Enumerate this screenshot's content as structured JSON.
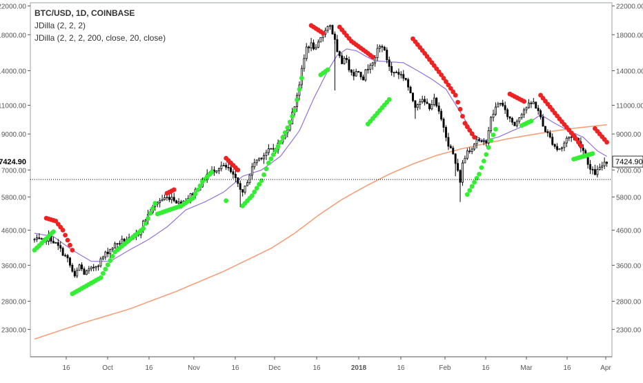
{
  "legend": {
    "symbol": "BTC/USD, 1D, COINBASE",
    "indicator1": "JDilla (2, 2, 2)",
    "indicator2": "JDilla (2, 2, 2, 200, close, 20, close)"
  },
  "chart_data": {
    "type": "candlestick",
    "symbol": "BTC/USD",
    "interval": "1D",
    "exchange": "COINBASE",
    "y_scale": "log",
    "ylim": [
      1900,
      22500
    ],
    "y_ticks": [
      "2300.00",
      "2800.00",
      "3600.00",
      "4600.00",
      "5800.00",
      "7000.00",
      "9000.00",
      "11000.00",
      "14000.00",
      "18000.00",
      "22000.00"
    ],
    "y_tick_values": [
      2300,
      2800,
      3600,
      4600,
      5800,
      7000,
      9000,
      11000,
      14000,
      18000,
      22000
    ],
    "x_ticks": [
      "16",
      "Oct",
      "16",
      "Nov",
      "16",
      "Dec",
      "16",
      "2018",
      "16",
      "Feb",
      "16",
      "Mar",
      "16",
      "Apr"
    ],
    "x_tick_bold": [
      false,
      false,
      false,
      false,
      false,
      false,
      false,
      true,
      false,
      false,
      false,
      false,
      false,
      false
    ],
    "last_price_label": "7424.90",
    "last_price": 7424.9,
    "reference_line": 6550,
    "close_anchors": [
      [
        0,
        4300
      ],
      [
        4,
        4250
      ],
      [
        6,
        4400
      ],
      [
        10,
        4100
      ],
      [
        14,
        3750
      ],
      [
        17,
        3300
      ],
      [
        19,
        3600
      ],
      [
        21,
        3400
      ],
      [
        24,
        3500
      ],
      [
        27,
        3650
      ],
      [
        30,
        3900
      ],
      [
        34,
        4150
      ],
      [
        38,
        4300
      ],
      [
        41,
        4300
      ],
      [
        44,
        4500
      ],
      [
        46,
        4850
      ],
      [
        49,
        5250
      ],
      [
        52,
        5600
      ],
      [
        55,
        5750
      ],
      [
        58,
        5800
      ],
      [
        61,
        5550
      ],
      [
        64,
        5700
      ],
      [
        67,
        5950
      ],
      [
        70,
        6300
      ],
      [
        73,
        6800
      ],
      [
        76,
        7000
      ],
      [
        79,
        7200
      ],
      [
        82,
        7050
      ],
      [
        84,
        6700
      ],
      [
        87,
        6200
      ],
      [
        88,
        5900
      ],
      [
        90,
        6500
      ],
      [
        93,
        7400
      ],
      [
        96,
        7700
      ],
      [
        99,
        8000
      ],
      [
        102,
        8200
      ],
      [
        105,
        8700
      ],
      [
        108,
        9800
      ],
      [
        110,
        11000
      ],
      [
        112,
        12800
      ],
      [
        113,
        14000
      ],
      [
        115,
        16500
      ],
      [
        117,
        16800
      ],
      [
        119,
        16200
      ],
      [
        121,
        17500
      ],
      [
        123,
        18800
      ],
      [
        125,
        19300
      ],
      [
        127,
        17200
      ],
      [
        128,
        15800
      ],
      [
        130,
        14800
      ],
      [
        131,
        15500
      ],
      [
        133,
        14300
      ],
      [
        135,
        13700
      ],
      [
        137,
        14000
      ],
      [
        139,
        13300
      ],
      [
        140,
        13900
      ],
      [
        142,
        14800
      ],
      [
        144,
        15100
      ],
      [
        145,
        16300
      ],
      [
        147,
        16700
      ],
      [
        149,
        15200
      ],
      [
        151,
        13800
      ],
      [
        153,
        13900
      ],
      [
        155,
        13600
      ],
      [
        157,
        13200
      ],
      [
        159,
        11800
      ],
      [
        161,
        11000
      ],
      [
        163,
        11400
      ],
      [
        165,
        11200
      ],
      [
        167,
        10900
      ],
      [
        169,
        11400
      ],
      [
        171,
        10400
      ],
      [
        173,
        9500
      ],
      [
        175,
        8400
      ],
      [
        177,
        7800
      ],
      [
        179,
        6900
      ],
      [
        180,
        6500
      ],
      [
        181,
        7300
      ],
      [
        183,
        8000
      ],
      [
        185,
        8200
      ],
      [
        187,
        8700
      ],
      [
        189,
        8400
      ],
      [
        191,
        8600
      ],
      [
        193,
        10000
      ],
      [
        195,
        10800
      ],
      [
        197,
        11300
      ],
      [
        199,
        10500
      ],
      [
        201,
        10000
      ],
      [
        203,
        9600
      ],
      [
        205,
        10200
      ],
      [
        207,
        10700
      ],
      [
        209,
        11000
      ],
      [
        211,
        11200
      ],
      [
        213,
        10600
      ],
      [
        215,
        9500
      ],
      [
        217,
        9000
      ],
      [
        219,
        8500
      ],
      [
        221,
        8100
      ],
      [
        223,
        8200
      ],
      [
        225,
        8700
      ],
      [
        227,
        8900
      ],
      [
        229,
        8700
      ],
      [
        231,
        8300
      ],
      [
        233,
        7800
      ],
      [
        235,
        7000
      ],
      [
        237,
        6850
      ],
      [
        239,
        7050
      ],
      [
        241,
        7424.9
      ]
    ],
    "series": [
      {
        "name": "candles",
        "color_up": "#ffffff",
        "color_down": "#000000"
      },
      {
        "name": "ma20",
        "color": "#9370db"
      },
      {
        "name": "ma200",
        "color": "#f4a07a"
      },
      {
        "name": "up-dots",
        "color": "#33ee33"
      },
      {
        "name": "down-dots",
        "color": "#ee2222"
      }
    ],
    "up_dot_segments": [
      [
        [
          0,
          4000
        ],
        [
          8,
          4550
        ]
      ],
      [
        [
          16,
          2950
        ],
        [
          28,
          3300
        ],
        [
          34,
          3950
        ],
        [
          46,
          4650
        ],
        [
          51,
          5550
        ]
      ],
      [
        [
          52,
          5150
        ],
        [
          62,
          5450
        ],
        [
          67,
          5750
        ],
        [
          71,
          6450
        ],
        [
          75,
          6900
        ]
      ],
      [
        [
          81,
          5650
        ]
      ],
      [
        [
          88,
          5450
        ],
        [
          92,
          5850
        ],
        [
          96,
          6500
        ],
        [
          99,
          7350
        ],
        [
          104,
          8500
        ],
        [
          107,
          9400
        ],
        [
          110,
          10600
        ],
        [
          112,
          12300
        ],
        [
          113,
          13300
        ]
      ],
      [
        [
          121,
          13600
        ],
        [
          124,
          14100
        ]
      ],
      [
        [
          141,
          9650
        ],
        [
          150,
          11450
        ]
      ],
      [
        [
          183,
          5900
        ],
        [
          188,
          6800
        ],
        [
          191,
          7800
        ],
        [
          193,
          8600
        ],
        [
          195,
          9300
        ]
      ],
      [
        [
          206,
          9550
        ],
        [
          210,
          9850
        ]
      ],
      [
        [
          228,
          7550
        ],
        [
          236,
          7850
        ]
      ]
    ],
    "down_dot_segments": [
      [
        [
          5,
          5000
        ],
        [
          9,
          4900
        ],
        [
          12,
          4600
        ],
        [
          16,
          4000
        ]
      ],
      [
        [
          56,
          5950
        ],
        [
          59,
          6100
        ]
      ],
      [
        [
          81,
          7600
        ],
        [
          86,
          7000
        ]
      ],
      [
        [
          117,
          19200
        ],
        [
          122,
          18200
        ]
      ],
      [
        [
          129,
          19000
        ],
        [
          134,
          17200
        ],
        [
          140,
          16000
        ],
        [
          143,
          15400
        ]
      ],
      [
        [
          160,
          17500
        ],
        [
          165,
          15800
        ],
        [
          172,
          13600
        ],
        [
          178,
          11800
        ],
        [
          182,
          9700
        ],
        [
          186,
          8800
        ]
      ],
      [
        [
          201,
          11900
        ],
        [
          207,
          11300
        ]
      ],
      [
        [
          214,
          11800
        ],
        [
          222,
          10000
        ],
        [
          228,
          8900
        ],
        [
          231,
          8300
        ]
      ],
      [
        [
          237,
          9350
        ],
        [
          242,
          8500
        ]
      ]
    ],
    "ma20_anchors": [
      [
        0,
        4500
      ],
      [
        8,
        4400
      ],
      [
        16,
        4000
      ],
      [
        24,
        3700
      ],
      [
        32,
        3700
      ],
      [
        40,
        4000
      ],
      [
        48,
        4300
      ],
      [
        56,
        4700
      ],
      [
        64,
        5300
      ],
      [
        72,
        5600
      ],
      [
        80,
        6000
      ],
      [
        88,
        6700
      ],
      [
        96,
        7000
      ],
      [
        104,
        7700
      ],
      [
        112,
        9200
      ],
      [
        118,
        11500
      ],
      [
        124,
        14000
      ],
      [
        128,
        15600
      ],
      [
        132,
        16300
      ],
      [
        136,
        16100
      ],
      [
        140,
        15500
      ],
      [
        144,
        15000
      ],
      [
        150,
        14900
      ],
      [
        156,
        14800
      ],
      [
        162,
        14000
      ],
      [
        168,
        13200
      ],
      [
        174,
        12300
      ],
      [
        180,
        10500
      ],
      [
        186,
        8900
      ],
      [
        190,
        8600
      ],
      [
        196,
        8800
      ],
      [
        202,
        9200
      ],
      [
        208,
        9600
      ],
      [
        214,
        10300
      ],
      [
        220,
        9700
      ],
      [
        226,
        9200
      ],
      [
        232,
        8800
      ],
      [
        238,
        8000
      ],
      [
        242,
        7700
      ]
    ],
    "ma200_anchors": [
      [
        0,
        2150
      ],
      [
        20,
        2400
      ],
      [
        40,
        2650
      ],
      [
        60,
        3000
      ],
      [
        80,
        3450
      ],
      [
        100,
        4050
      ],
      [
        110,
        4500
      ],
      [
        120,
        5100
      ],
      [
        130,
        5700
      ],
      [
        140,
        6250
      ],
      [
        150,
        6800
      ],
      [
        160,
        7300
      ],
      [
        170,
        7750
      ],
      [
        180,
        8100
      ],
      [
        190,
        8400
      ],
      [
        200,
        8700
      ],
      [
        210,
        8950
      ],
      [
        220,
        9200
      ],
      [
        230,
        9400
      ],
      [
        242,
        9600
      ]
    ]
  }
}
